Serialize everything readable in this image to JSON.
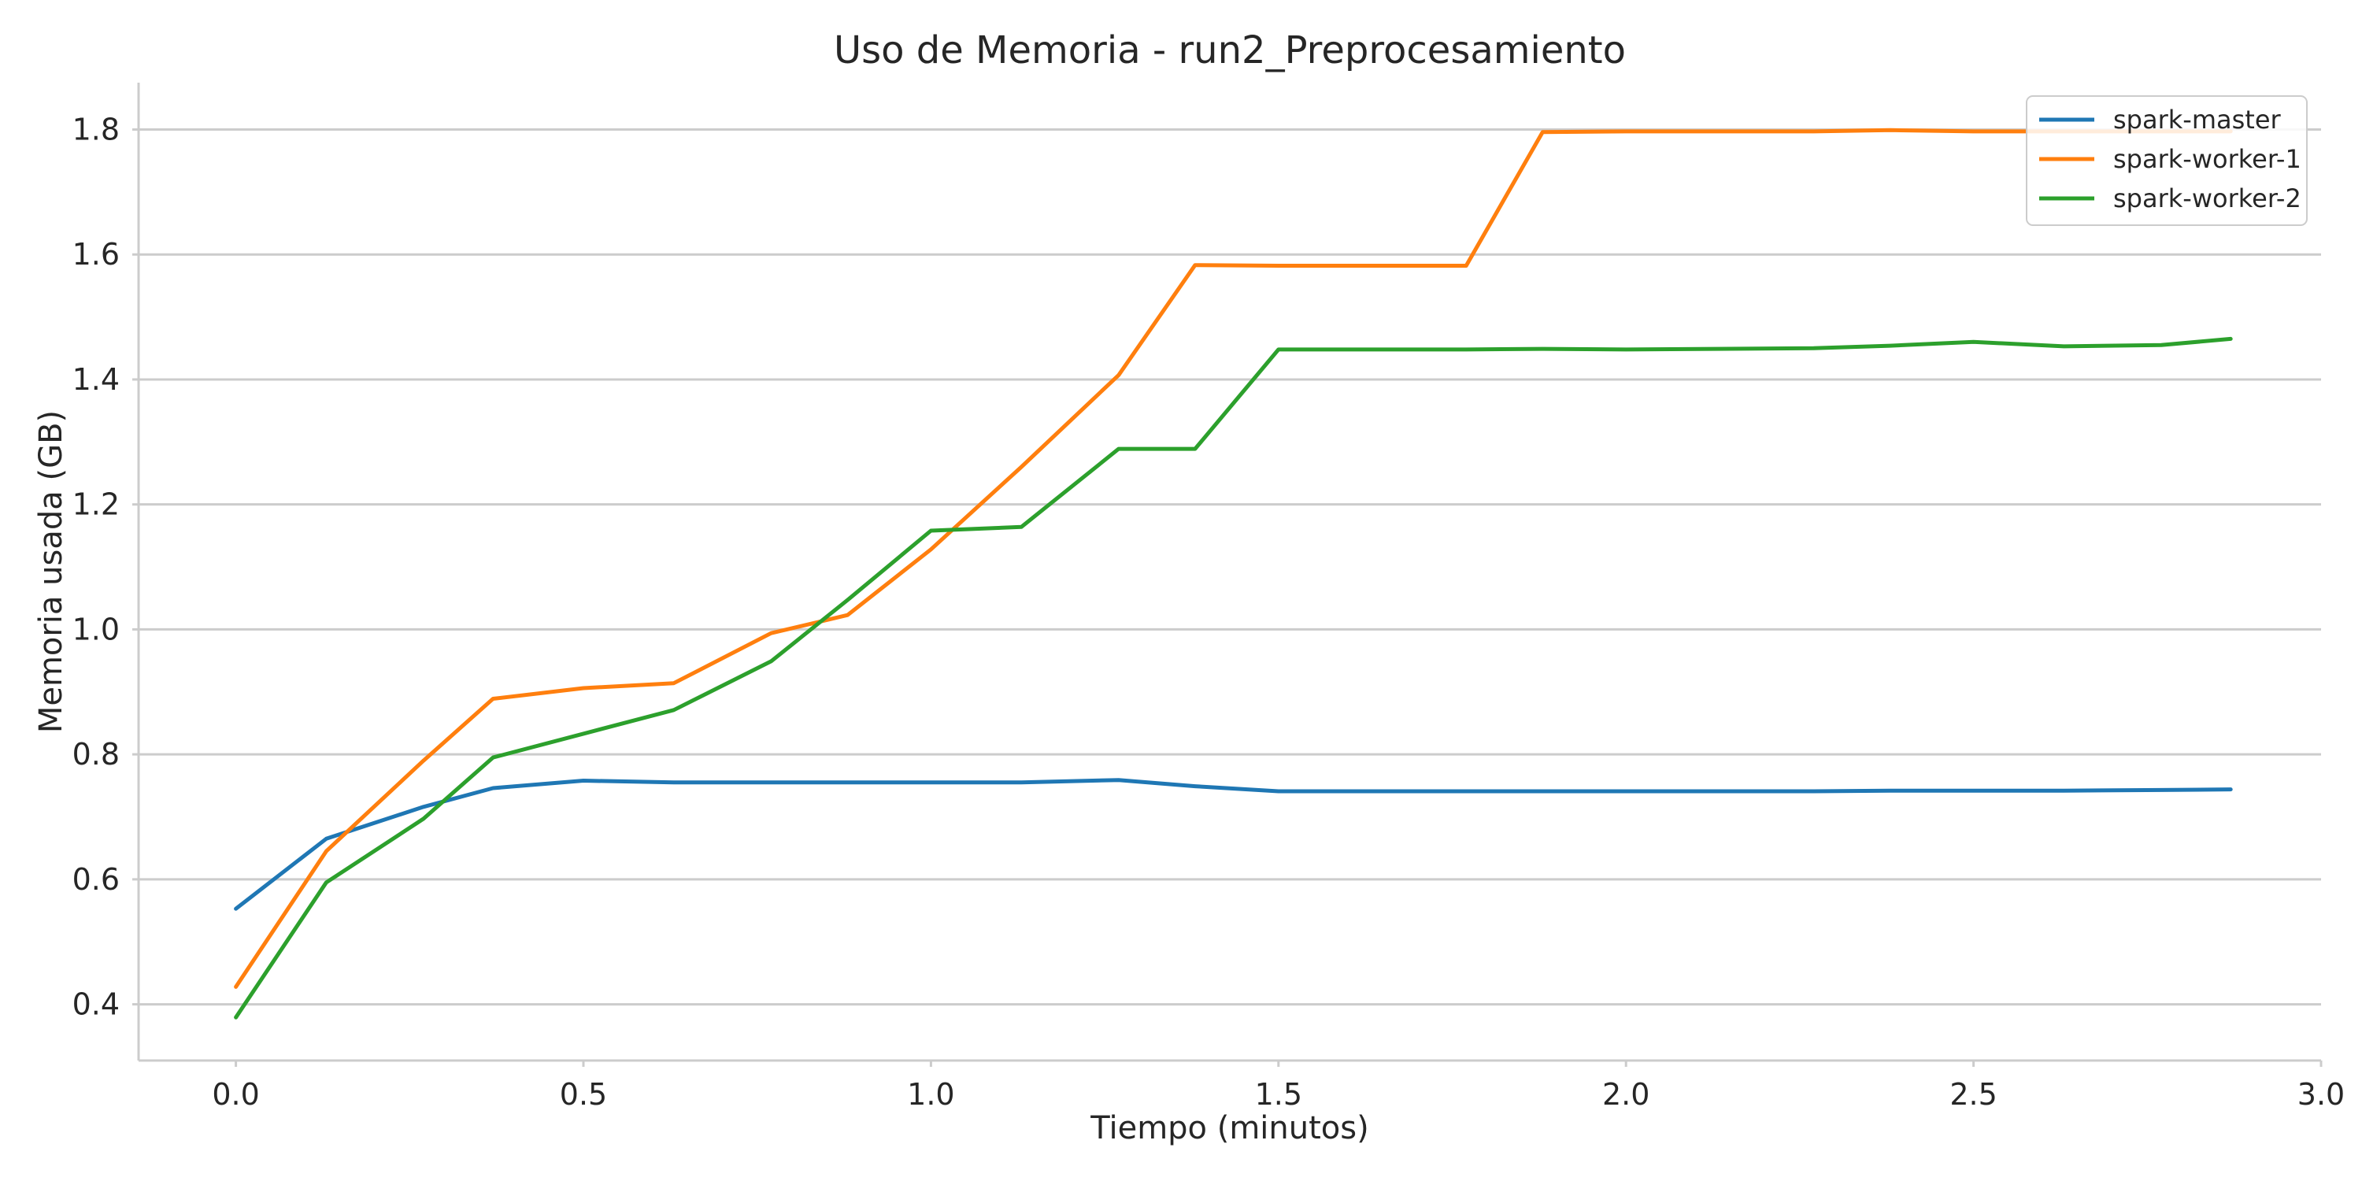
{
  "chart_data": {
    "type": "line",
    "title": "Uso de Memoria - run2_Preprocesamiento",
    "xlabel": "Tiempo (minutos)",
    "ylabel": "Memoria usada (GB)",
    "xlim": [
      -0.14,
      3.0
    ],
    "ylim": [
      0.31,
      1.875
    ],
    "xticks": [
      0.0,
      0.5,
      1.0,
      1.5,
      2.0,
      2.5,
      3.0
    ],
    "xtick_labels": [
      "0.0",
      "0.5",
      "1.0",
      "1.5",
      "2.0",
      "2.5",
      "3.0"
    ],
    "yticks": [
      0.4,
      0.6,
      0.8,
      1.0,
      1.2,
      1.4,
      1.6,
      1.8
    ],
    "ytick_labels": [
      "0.4",
      "0.6",
      "0.8",
      "1.0",
      "1.2",
      "1.4",
      "1.6",
      "1.8"
    ],
    "grid": "horizontal",
    "legend_position": "top-right",
    "series": [
      {
        "name": "spark-master",
        "color": "#1f77b4",
        "points": [
          [
            0.0,
            0.553
          ],
          [
            0.13,
            0.665
          ],
          [
            0.27,
            0.716
          ],
          [
            0.37,
            0.746
          ],
          [
            0.5,
            0.758
          ],
          [
            0.63,
            0.755
          ],
          [
            0.77,
            0.755
          ],
          [
            0.88,
            0.755
          ],
          [
            1.0,
            0.755
          ],
          [
            1.13,
            0.755
          ],
          [
            1.27,
            0.759
          ],
          [
            1.38,
            0.749
          ],
          [
            1.5,
            0.741
          ],
          [
            1.63,
            0.741
          ],
          [
            1.77,
            0.741
          ],
          [
            1.88,
            0.741
          ],
          [
            2.0,
            0.741
          ],
          [
            2.13,
            0.741
          ],
          [
            2.27,
            0.741
          ],
          [
            2.38,
            0.742
          ],
          [
            2.5,
            0.742
          ],
          [
            2.63,
            0.742
          ],
          [
            2.77,
            0.743
          ],
          [
            2.87,
            0.744
          ]
        ]
      },
      {
        "name": "spark-worker-1",
        "color": "#ff7f0e",
        "points": [
          [
            0.0,
            0.428
          ],
          [
            0.13,
            0.645
          ],
          [
            0.27,
            0.79
          ],
          [
            0.37,
            0.889
          ],
          [
            0.5,
            0.906
          ],
          [
            0.63,
            0.914
          ],
          [
            0.77,
            0.994
          ],
          [
            0.88,
            1.023
          ],
          [
            1.0,
            1.128
          ],
          [
            1.13,
            1.26
          ],
          [
            1.27,
            1.407
          ],
          [
            1.38,
            1.583
          ],
          [
            1.5,
            1.582
          ],
          [
            1.63,
            1.582
          ],
          [
            1.77,
            1.582
          ],
          [
            1.88,
            1.796
          ],
          [
            2.0,
            1.797
          ],
          [
            2.13,
            1.797
          ],
          [
            2.27,
            1.797
          ],
          [
            2.38,
            1.799
          ],
          [
            2.5,
            1.797
          ],
          [
            2.63,
            1.797
          ],
          [
            2.77,
            1.797
          ],
          [
            2.87,
            1.797
          ]
        ]
      },
      {
        "name": "spark-worker-2",
        "color": "#2ca02c",
        "points": [
          [
            0.0,
            0.379
          ],
          [
            0.13,
            0.595
          ],
          [
            0.27,
            0.697
          ],
          [
            0.37,
            0.795
          ],
          [
            0.5,
            0.833
          ],
          [
            0.63,
            0.871
          ],
          [
            0.77,
            0.949
          ],
          [
            0.88,
            1.047
          ],
          [
            1.0,
            1.158
          ],
          [
            1.13,
            1.164
          ],
          [
            1.27,
            1.289
          ],
          [
            1.38,
            1.289
          ],
          [
            1.5,
            1.448
          ],
          [
            1.63,
            1.448
          ],
          [
            1.77,
            1.448
          ],
          [
            1.88,
            1.449
          ],
          [
            2.0,
            1.448
          ],
          [
            2.13,
            1.449
          ],
          [
            2.27,
            1.45
          ],
          [
            2.38,
            1.454
          ],
          [
            2.5,
            1.46
          ],
          [
            2.63,
            1.453
          ],
          [
            2.77,
            1.455
          ],
          [
            2.87,
            1.465
          ]
        ]
      }
    ]
  }
}
